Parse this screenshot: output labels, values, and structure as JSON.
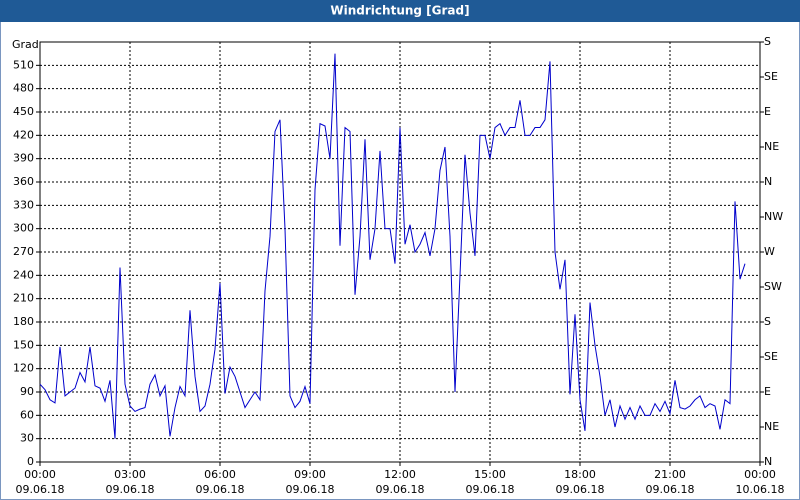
{
  "chart_data": {
    "type": "line",
    "title": "Windrichtung [Grad]",
    "y_label": "Grad",
    "xlim": [
      0,
      1440
    ],
    "xticks": [
      {
        "value": 0,
        "label": "00:00",
        "date": "09.06.18"
      },
      {
        "value": 180,
        "label": "03:00",
        "date": "09.06.18"
      },
      {
        "value": 360,
        "label": "06:00",
        "date": "09.06.18"
      },
      {
        "value": 540,
        "label": "09:00",
        "date": "09.06.18"
      },
      {
        "value": 720,
        "label": "12:00",
        "date": "09.06.18"
      },
      {
        "value": 900,
        "label": "15:00",
        "date": "09.06.18"
      },
      {
        "value": 1080,
        "label": "18:00",
        "date": "09.06.18"
      },
      {
        "value": 1260,
        "label": "21:00",
        "date": "09.06.18"
      },
      {
        "value": 1440,
        "label": "00:00",
        "date": "10.06.18"
      }
    ],
    "ylim": [
      0,
      540
    ],
    "yticks": [
      0,
      30,
      60,
      90,
      120,
      150,
      180,
      210,
      240,
      270,
      300,
      330,
      360,
      390,
      420,
      450,
      480,
      510
    ],
    "y2lim": [
      0,
      540
    ],
    "y2ticks": [
      {
        "value": 0,
        "label": "N"
      },
      {
        "value": 45,
        "label": "NE"
      },
      {
        "value": 90,
        "label": "E"
      },
      {
        "value": 135,
        "label": "SE"
      },
      {
        "value": 180,
        "label": "S"
      },
      {
        "value": 225,
        "label": "SW"
      },
      {
        "value": 270,
        "label": "W"
      },
      {
        "value": 315,
        "label": "NW"
      },
      {
        "value": 360,
        "label": "N"
      },
      {
        "value": 405,
        "label": "NE"
      },
      {
        "value": 450,
        "label": "E"
      },
      {
        "value": 495,
        "label": "SE"
      },
      {
        "value": 540,
        "label": "S"
      }
    ],
    "grid": true,
    "x": [
      0,
      10,
      20,
      30,
      40,
      50,
      60,
      70,
      80,
      90,
      100,
      110,
      120,
      130,
      140,
      150,
      160,
      170,
      180,
      190,
      200,
      210,
      220,
      230,
      240,
      250,
      260,
      270,
      280,
      290,
      300,
      310,
      320,
      330,
      340,
      350,
      360,
      370,
      380,
      390,
      400,
      410,
      420,
      430,
      440,
      450,
      460,
      470,
      480,
      490,
      500,
      510,
      520,
      530,
      540,
      550,
      560,
      570,
      580,
      590,
      600,
      610,
      620,
      630,
      640,
      650,
      660,
      670,
      680,
      690,
      700,
      710,
      720,
      730,
      740,
      750,
      760,
      770,
      780,
      790,
      800,
      810,
      820,
      830,
      840,
      850,
      860,
      870,
      880,
      890,
      900,
      910,
      920,
      930,
      940,
      950,
      960,
      970,
      980,
      990,
      1000,
      1010,
      1020,
      1030,
      1040,
      1050,
      1060,
      1070,
      1080,
      1090,
      1100,
      1110,
      1120,
      1130,
      1140,
      1150,
      1160,
      1170,
      1180,
      1190,
      1200,
      1210,
      1220,
      1230,
      1240,
      1250,
      1260,
      1270,
      1280,
      1290,
      1300,
      1310,
      1320,
      1330,
      1340,
      1350,
      1360,
      1370,
      1380,
      1390,
      1400,
      1410
    ],
    "series": [
      {
        "color": "#0000cc",
        "values": [
          100,
          93,
          80,
          76,
          148,
          85,
          90,
          95,
          115,
          103,
          148,
          98,
          95,
          78,
          105,
          30,
          250,
          100,
          72,
          65,
          68,
          70,
          100,
          112,
          85,
          98,
          33,
          70,
          97,
          85,
          195,
          110,
          65,
          72,
          100,
          145,
          230,
          88,
          122,
          110,
          90,
          70,
          80,
          90,
          80,
          220,
          290,
          425,
          440,
          300,
          85,
          70,
          78,
          97,
          75,
          350,
          435,
          432,
          390,
          525,
          278,
          430,
          425,
          215,
          290,
          415,
          260,
          300,
          400,
          300,
          300,
          255,
          430,
          280,
          305,
          270,
          280,
          295,
          265,
          300,
          375,
          405,
          290,
          90,
          240,
          395,
          320,
          265,
          420,
          420,
          390,
          430,
          435,
          420,
          430,
          430,
          465,
          420,
          420,
          430,
          430,
          440,
          515,
          270,
          222,
          260,
          87,
          190,
          80,
          40,
          205,
          150,
          110,
          60,
          80,
          45,
          72,
          55,
          70,
          55,
          72,
          60,
          60,
          75,
          65,
          78,
          62,
          105,
          70,
          68,
          72,
          80,
          85,
          70,
          75,
          72,
          42,
          80,
          75,
          335,
          235,
          255
        ]
      }
    ]
  }
}
